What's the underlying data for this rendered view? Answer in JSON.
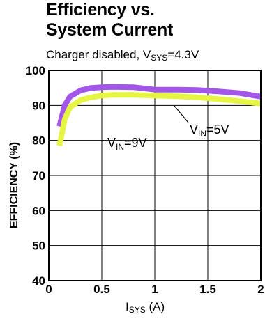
{
  "page": {
    "title_line1": "Efficiency vs.",
    "title_line2": "System Current",
    "subtitle_prefix": "Charger disabled, V",
    "subtitle_sub": "SYS",
    "subtitle_suffix": "=4.3V"
  },
  "chart_data": {
    "type": "line",
    "title": "Efficiency vs. System Current",
    "subtitle": "Charger disabled, VSYS=4.3V",
    "xlabel": "ISYS (A)",
    "ylabel": "EFFICIENCY (%)",
    "xlim": [
      0,
      2
    ],
    "ylim": [
      40,
      100
    ],
    "xticks": [
      "0",
      "0.5",
      "1",
      "1.5",
      "2"
    ],
    "yticks": [
      "40",
      "50",
      "60",
      "70",
      "80",
      "90",
      "100"
    ],
    "xtick_values": [
      0,
      0.5,
      1,
      1.5,
      2
    ],
    "ytick_values": [
      40,
      50,
      60,
      70,
      80,
      90,
      100
    ],
    "grid": true,
    "xlabel_main": "I",
    "xlabel_sub": "SYS",
    "xlabel_suffix": " (A)",
    "series": [
      {
        "name": "VIN=9V",
        "label_main": "V",
        "label_sub": "IN",
        "label_suffix": "=9V",
        "color": "#a357e8",
        "x": [
          0.1,
          0.15,
          0.2,
          0.3,
          0.4,
          0.5,
          0.6,
          0.8,
          1.0,
          1.2,
          1.4,
          1.6,
          1.8,
          2.0
        ],
        "y": [
          84,
          90,
          92.5,
          94.3,
          95,
          95.2,
          95.3,
          95.2,
          94.5,
          94.5,
          94.4,
          94.0,
          93.5,
          92.5
        ]
      },
      {
        "name": "VIN=5V",
        "label_main": "V",
        "label_sub": "IN",
        "label_suffix": "=5V",
        "color": "#e6f543",
        "x": [
          0.1,
          0.15,
          0.2,
          0.3,
          0.4,
          0.5,
          0.6,
          0.8,
          1.0,
          1.2,
          1.4,
          1.6,
          1.8,
          2.0
        ],
        "y": [
          78.5,
          86,
          89.5,
          91.5,
          92.3,
          92.8,
          93,
          93,
          92.8,
          92.6,
          92.3,
          91.8,
          91.2,
          90.5
        ]
      }
    ]
  }
}
